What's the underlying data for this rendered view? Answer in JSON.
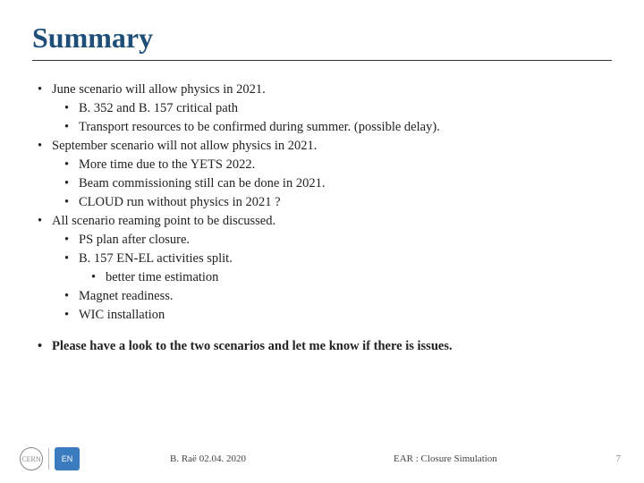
{
  "title": "Summary",
  "colors": {
    "title": "#1f4e79",
    "text": "#222222",
    "underline": "#333333",
    "logo_blue": "#3b7bbf",
    "page_num": "#888888"
  },
  "font": {
    "family": "Georgia",
    "title_size": 32,
    "body_size": 14.5,
    "footer_size": 11
  },
  "bullets": [
    {
      "level": 1,
      "text": "June scenario will allow physics in 2021.",
      "bold": false
    },
    {
      "level": 2,
      "text": "B. 352 and B. 157 critical path",
      "bold": false
    },
    {
      "level": 2,
      "text": "Transport resources to be confirmed during summer. (possible delay).",
      "bold": false
    },
    {
      "level": 1,
      "text": "September scenario will not allow physics in 2021.",
      "bold": false
    },
    {
      "level": 2,
      "text": "More time due to the YETS 2022.",
      "bold": false
    },
    {
      "level": 2,
      "text": "Beam commissioning still can be done in 2021.",
      "bold": false
    },
    {
      "level": 2,
      "text": "CLOUD run without physics in 2021 ?",
      "bold": false
    },
    {
      "level": 1,
      "text": "All scenario reaming point to be discussed.",
      "bold": false
    },
    {
      "level": 2,
      "text": "PS plan after closure.",
      "bold": false
    },
    {
      "level": 2,
      "text": "B. 157 EN-EL activities split.",
      "bold": false
    },
    {
      "level": 3,
      "text": "better time estimation",
      "bold": false
    },
    {
      "level": 2,
      "text": "Magnet readiness.",
      "bold": false
    },
    {
      "level": 2,
      "text": "WIC installation",
      "bold": false
    },
    {
      "level": 0,
      "text": "",
      "spacer": true
    },
    {
      "level": 1,
      "text": "Please have a look to the two scenarios and let me know if there is issues.",
      "bold": true
    }
  ],
  "footer": {
    "author": "B. Raë 02.04. 2020",
    "center": "EAR : Closure Simulation",
    "page": "7",
    "logo_left": "CERN",
    "logo_right": "EN"
  }
}
